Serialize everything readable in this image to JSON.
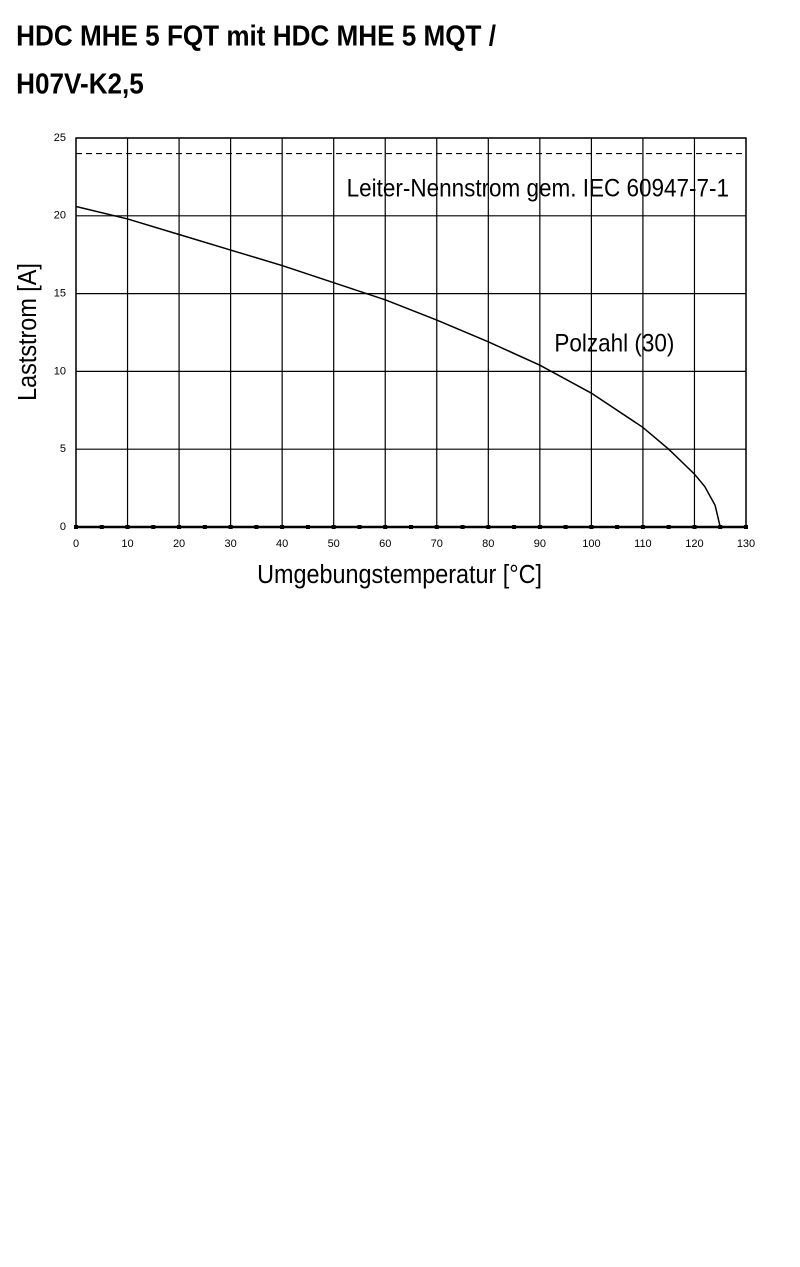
{
  "chart_data": {
    "type": "line",
    "title": [
      "HDC MHE 5 FQT mit HDC MHE 5 MQT /",
      "H07V-K2,5"
    ],
    "xlabel": "Umgebungstemperatur [°C]",
    "ylabel": "Laststrom [A]",
    "x": [
      0,
      10,
      20,
      30,
      40,
      50,
      60,
      70,
      80,
      90,
      100,
      110,
      115,
      120,
      122,
      124,
      125
    ],
    "series": [
      {
        "name": "Polzahl (30)",
        "color": "#000000",
        "values": [
          20.6,
          19.8,
          18.8,
          17.8,
          16.8,
          15.7,
          14.6,
          13.3,
          11.9,
          10.4,
          8.6,
          6.4,
          5.0,
          3.4,
          2.6,
          1.4,
          0
        ]
      }
    ],
    "reference_line": {
      "value": 24,
      "label": "Leiter-Nennstrom gem. IEC 60947-7-1"
    },
    "xlim": [
      0,
      130
    ],
    "ylim": [
      0,
      25
    ],
    "xticks": [
      0,
      10,
      20,
      30,
      40,
      50,
      60,
      70,
      80,
      90,
      100,
      110,
      120,
      130
    ],
    "xminorticks": [
      5,
      15,
      25,
      35,
      45,
      55,
      65,
      75,
      85,
      95,
      105,
      115,
      125
    ],
    "yticks": [
      0,
      5,
      10,
      15,
      20,
      25
    ],
    "grid": true
  }
}
